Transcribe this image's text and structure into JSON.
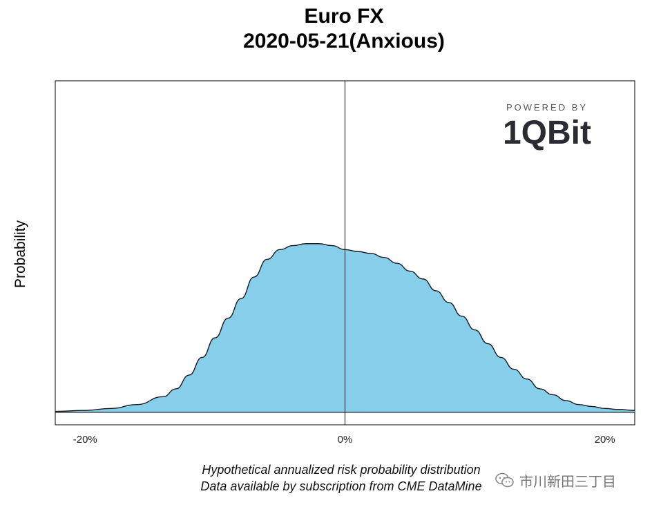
{
  "title": {
    "line1": "Euro FX",
    "line2": "2020-05-21(Anxious)"
  },
  "logo": {
    "powered_by": "POWERED BY",
    "brand": "1QBit"
  },
  "footnote": {
    "line1": "Hypothetical annualized risk probability distribution",
    "line2": "Data available by subscription from CME DataMine"
  },
  "watermark": {
    "text": "市川新田三丁目",
    "icon": "wechat-icon"
  },
  "colors": {
    "fill": "#87CEEB",
    "outline": "#1a1a1a",
    "axis": "#000000"
  },
  "chart_data": {
    "type": "area",
    "title": "Euro FX 2020-05-21(Anxious)",
    "xlabel": "",
    "ylabel": "Probability",
    "x_unit": "%",
    "xlim": [
      -22.3,
      22.3
    ],
    "ylim": [
      0,
      1.0
    ],
    "x_ticks": [
      -20,
      0,
      20
    ],
    "x_tick_labels": [
      "-20%",
      "0%",
      "20%"
    ],
    "y_ticks": [],
    "grid": false,
    "vertical_reference_line_x": 0,
    "series": [
      {
        "x": [
          -22.3,
          -20,
          -18,
          -16,
          -14,
          -13,
          -12,
          -11,
          -10,
          -9,
          -8,
          -7,
          -6,
          -5,
          -4,
          -3,
          -2,
          -1,
          0,
          1,
          2,
          3,
          4,
          5,
          6,
          7,
          8,
          9,
          10,
          11,
          12,
          13,
          14,
          15,
          16,
          17,
          18,
          19,
          20,
          21,
          22.3
        ],
        "y": [
          0.005,
          0.01,
          0.02,
          0.04,
          0.08,
          0.12,
          0.19,
          0.28,
          0.38,
          0.48,
          0.58,
          0.69,
          0.78,
          0.83,
          0.85,
          0.86,
          0.86,
          0.85,
          0.83,
          0.82,
          0.81,
          0.79,
          0.76,
          0.72,
          0.68,
          0.62,
          0.56,
          0.49,
          0.42,
          0.35,
          0.28,
          0.22,
          0.17,
          0.12,
          0.09,
          0.06,
          0.04,
          0.03,
          0.02,
          0.015,
          0.01
        ]
      }
    ]
  }
}
